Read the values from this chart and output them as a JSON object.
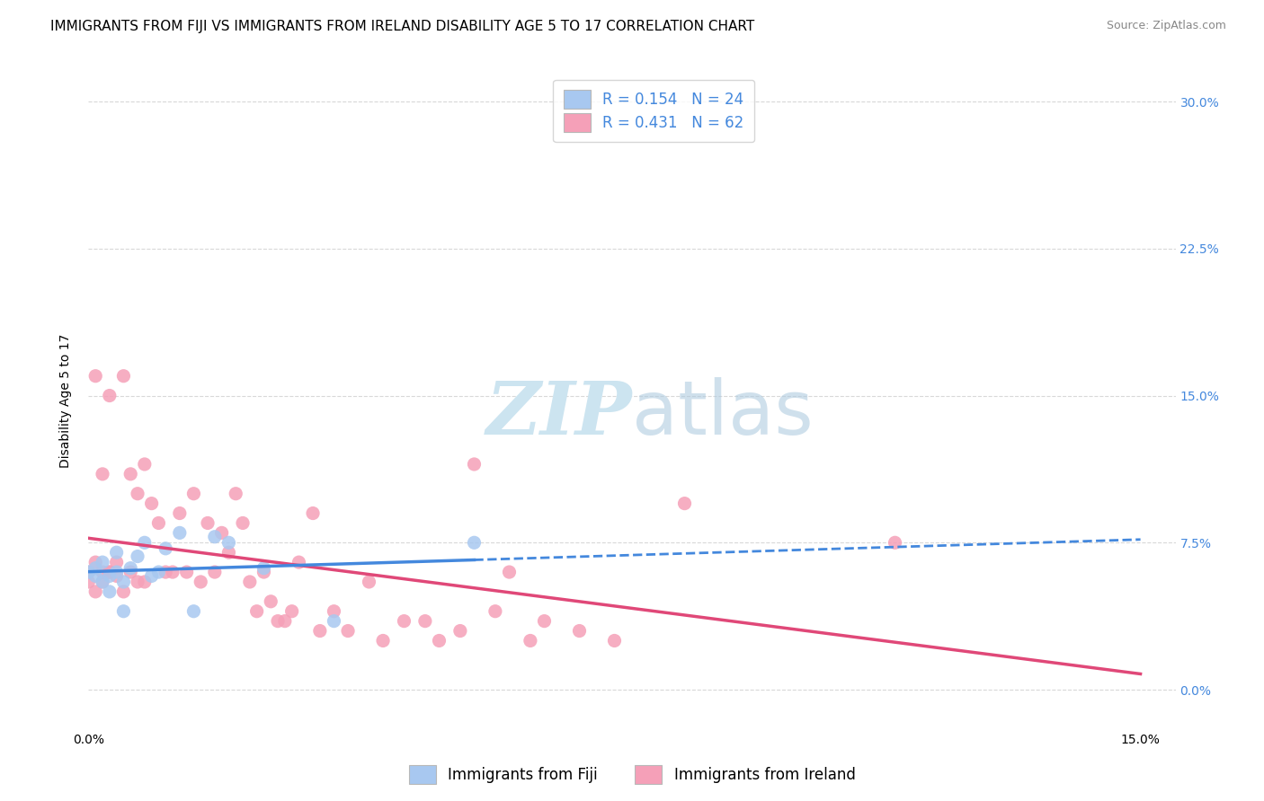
{
  "title": "IMMIGRANTS FROM FIJI VS IMMIGRANTS FROM IRELAND DISABILITY AGE 5 TO 17 CORRELATION CHART",
  "source": "Source: ZipAtlas.com",
  "ylabel": "Disability Age 5 to 17",
  "xlim": [
    0.0,
    0.155
  ],
  "ylim": [
    -0.02,
    0.315
  ],
  "fiji_color": "#a8c8f0",
  "ireland_color": "#f5a0b8",
  "fiji_line_color": "#4488dd",
  "ireland_line_color": "#e04878",
  "fiji_R": 0.154,
  "fiji_N": 24,
  "ireland_R": 0.431,
  "ireland_N": 62,
  "fiji_scatter_x": [
    0.0,
    0.001,
    0.001,
    0.002,
    0.002,
    0.003,
    0.003,
    0.004,
    0.004,
    0.005,
    0.005,
    0.006,
    0.007,
    0.008,
    0.009,
    0.01,
    0.011,
    0.013,
    0.015,
    0.018,
    0.02,
    0.025,
    0.035,
    0.055
  ],
  "fiji_scatter_y": [
    0.06,
    0.058,
    0.062,
    0.055,
    0.065,
    0.058,
    0.05,
    0.06,
    0.07,
    0.055,
    0.04,
    0.062,
    0.068,
    0.075,
    0.058,
    0.06,
    0.072,
    0.08,
    0.04,
    0.078,
    0.075,
    0.062,
    0.035,
    0.075
  ],
  "ireland_scatter_x": [
    0.0,
    0.0,
    0.001,
    0.001,
    0.001,
    0.002,
    0.002,
    0.002,
    0.003,
    0.003,
    0.003,
    0.004,
    0.004,
    0.005,
    0.005,
    0.006,
    0.006,
    0.007,
    0.007,
    0.008,
    0.008,
    0.009,
    0.01,
    0.011,
    0.012,
    0.013,
    0.014,
    0.015,
    0.016,
    0.017,
    0.018,
    0.019,
    0.02,
    0.021,
    0.022,
    0.023,
    0.024,
    0.025,
    0.026,
    0.027,
    0.028,
    0.029,
    0.03,
    0.032,
    0.033,
    0.035,
    0.037,
    0.04,
    0.042,
    0.045,
    0.048,
    0.05,
    0.053,
    0.055,
    0.058,
    0.06,
    0.063,
    0.065,
    0.07,
    0.075,
    0.085,
    0.115
  ],
  "ireland_scatter_y": [
    0.055,
    0.06,
    0.05,
    0.065,
    0.16,
    0.055,
    0.06,
    0.11,
    0.06,
    0.15,
    0.06,
    0.058,
    0.065,
    0.05,
    0.16,
    0.06,
    0.11,
    0.055,
    0.1,
    0.055,
    0.115,
    0.095,
    0.085,
    0.06,
    0.06,
    0.09,
    0.06,
    0.1,
    0.055,
    0.085,
    0.06,
    0.08,
    0.07,
    0.1,
    0.085,
    0.055,
    0.04,
    0.06,
    0.045,
    0.035,
    0.035,
    0.04,
    0.065,
    0.09,
    0.03,
    0.04,
    0.03,
    0.055,
    0.025,
    0.035,
    0.035,
    0.025,
    0.03,
    0.115,
    0.04,
    0.06,
    0.025,
    0.035,
    0.03,
    0.025,
    0.095,
    0.075
  ],
  "background_color": "#ffffff",
  "grid_color": "#d8d8d8",
  "watermark_color": "#cce4f0",
  "title_fontsize": 11,
  "source_fontsize": 9,
  "axis_label_fontsize": 10,
  "tick_fontsize": 10,
  "legend_fontsize": 12
}
